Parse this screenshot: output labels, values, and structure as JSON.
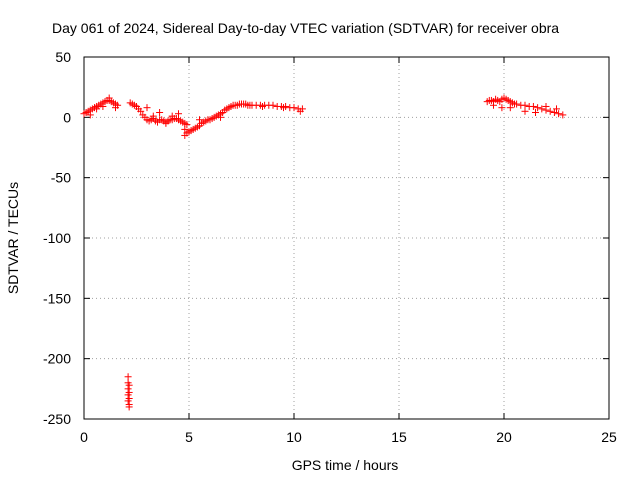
{
  "chart_data": {
    "type": "scatter",
    "title": "Day 061 of 2024, Sidereal Day-to-day VTEC variation (SDTVAR) for receiver obra",
    "xlabel": "GPS time / hours",
    "ylabel": "SDTVAR / TECUs",
    "xlim": [
      0,
      25
    ],
    "ylim": [
      -250,
      50
    ],
    "x_ticks": [
      0,
      5,
      10,
      15,
      20,
      25
    ],
    "y_ticks": [
      -250,
      -200,
      -150,
      -100,
      -50,
      0,
      50
    ],
    "x_tick_labels": [
      "0",
      "5",
      "10",
      "15",
      "20",
      "25"
    ],
    "y_tick_labels": [
      "-250",
      "-200",
      "-150",
      "-100",
      "-50",
      "0",
      "50"
    ],
    "grid": true,
    "marker": "+",
    "marker_color": "#ff0000",
    "series": [
      {
        "name": "SDTVAR",
        "x": [
          0.0,
          0.1,
          0.2,
          0.3,
          0.4,
          0.5,
          0.6,
          0.7,
          0.8,
          0.9,
          1.0,
          1.1,
          1.2,
          1.3,
          1.4,
          1.5,
          1.6,
          0.3,
          0.6,
          0.9,
          1.2,
          1.5,
          2.2,
          2.3,
          2.4,
          2.5,
          2.6,
          2.7,
          2.8,
          2.9,
          3.0,
          3.1,
          3.2,
          3.3,
          3.4,
          3.5,
          3.6,
          3.7,
          3.8,
          3.9,
          4.0,
          4.1,
          4.2,
          4.3,
          4.4,
          4.5,
          4.6,
          4.7,
          4.8,
          4.9,
          3.0,
          3.3,
          3.6,
          3.9,
          4.2,
          4.5,
          4.8,
          2.1,
          2.1,
          2.1,
          2.1,
          2.1,
          2.15,
          2.15,
          2.15,
          2.15,
          2.15,
          4.8,
          4.9,
          5.0,
          5.1,
          5.2,
          5.3,
          5.4,
          5.5,
          5.6,
          5.7,
          5.8,
          5.9,
          6.0,
          6.1,
          6.2,
          6.3,
          6.4,
          6.5,
          6.6,
          6.7,
          6.8,
          6.9,
          7.0,
          7.1,
          7.2,
          7.3,
          7.4,
          7.5,
          7.6,
          7.7,
          7.8,
          7.9,
          8.0,
          8.2,
          8.4,
          8.6,
          8.8,
          9.0,
          9.2,
          9.4,
          9.6,
          9.8,
          10.0,
          10.2,
          10.4,
          5.5,
          6.5,
          7.5,
          8.5,
          9.5,
          10.3,
          19.2,
          19.3,
          19.4,
          19.5,
          19.6,
          19.7,
          19.8,
          19.9,
          20.0,
          20.1,
          20.2,
          20.3,
          20.4,
          20.5,
          19.5,
          19.9,
          20.3,
          20.6,
          20.8,
          21.0,
          21.2,
          21.4,
          21.6,
          21.8,
          22.0,
          22.2,
          22.4,
          22.6,
          22.8,
          21.0,
          21.5,
          22.0,
          22.5
        ],
        "y": [
          3,
          4,
          5,
          6,
          7,
          8,
          9,
          10,
          11,
          12,
          13,
          14,
          14,
          13,
          12,
          11,
          10,
          2,
          7,
          9,
          16,
          8,
          12,
          11,
          10,
          9,
          7,
          5,
          2,
          0,
          -2,
          -3,
          -2,
          -1,
          -3,
          -4,
          -2,
          -2,
          -3,
          -4,
          -3,
          -2,
          -2,
          -1,
          -1,
          -2,
          -3,
          -4,
          -5,
          -6,
          8,
          1,
          4,
          -5,
          1,
          3,
          -10,
          -215,
          -220,
          -225,
          -230,
          -235,
          -222,
          -228,
          -233,
          -238,
          -240,
          -15,
          -13,
          -12,
          -11,
          -10,
          -9,
          -8,
          -7,
          -5,
          -4,
          -3,
          -2,
          -2,
          -1,
          0,
          1,
          2,
          3,
          4,
          6,
          7,
          8,
          9,
          10,
          10,
          10,
          11,
          11,
          11,
          11,
          10,
          10,
          10,
          10,
          10,
          10,
          10,
          10,
          9,
          9,
          9,
          8,
          8,
          7,
          7,
          -2,
          0,
          11,
          9,
          8,
          5,
          13,
          14,
          14,
          13,
          15,
          14,
          13,
          15,
          16,
          15,
          14,
          13,
          12,
          11,
          10,
          8,
          8,
          11,
          10,
          10,
          9,
          9,
          8,
          7,
          6,
          5,
          4,
          3,
          2,
          5,
          4,
          9,
          7
        ]
      }
    ]
  }
}
